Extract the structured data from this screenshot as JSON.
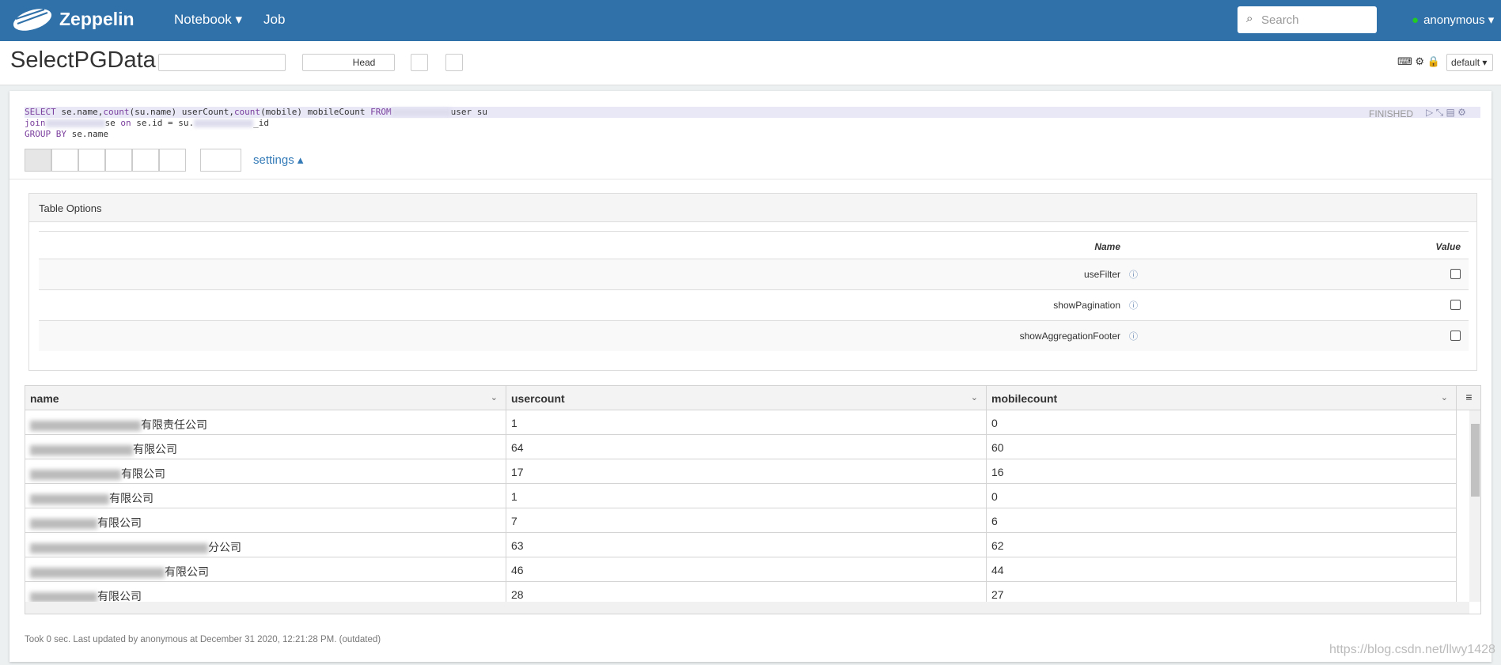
{
  "navbar": {
    "brand": "Zeppelin",
    "menu": [
      "Notebook",
      "Job"
    ],
    "search_placeholder": "Search",
    "user": "anonymous"
  },
  "notebook": {
    "title": "SelectPGData",
    "toolbar_button": "Head",
    "interpreter": "default"
  },
  "paragraph": {
    "status": "FINISHED",
    "code": [
      [
        {
          "text": "SELECT",
          "keyword": true
        },
        {
          "text": " se.name,"
        },
        {
          "text": "count",
          "keyword": true
        },
        {
          "text": "(su.name) userCount,"
        },
        {
          "text": "count",
          "keyword": true
        },
        {
          "text": "(mobile) mobileCount "
        },
        {
          "text": "FROM",
          "keyword": true
        },
        {
          "redacted": true
        },
        {
          "text": "user su"
        }
      ],
      [
        {
          "text": "join",
          "keyword": true
        },
        {
          "redacted": true
        },
        {
          "text": "se "
        },
        {
          "text": "on",
          "keyword": true
        },
        {
          "text": " se.id = su."
        },
        {
          "redacted": true
        },
        {
          "text": "_id"
        }
      ],
      [
        {
          "text": "GROUP BY",
          "keyword": true
        },
        {
          "text": " se.name"
        }
      ]
    ],
    "settings_link": "settings"
  },
  "table_options": {
    "title": "Table Options",
    "headers": [
      "Name",
      "Value"
    ],
    "options": [
      "useFilter",
      "showPagination",
      "showAggregationFooter"
    ]
  },
  "table": {
    "columns": [
      "name",
      "usercount",
      "mobilecount"
    ],
    "rows": [
      [
        "有限责任公司",
        "1",
        "0"
      ],
      [
        "有限公司",
        "64",
        "60"
      ],
      [
        "有限公司",
        "17",
        "16"
      ],
      [
        "有限公司",
        "1",
        "0"
      ],
      [
        "有限公司",
        "7",
        "6"
      ],
      [
        "分公司",
        "63",
        "62"
      ],
      [
        "有限公司",
        "46",
        "44"
      ],
      [
        "有限公司",
        "28",
        "27"
      ]
    ]
  },
  "footer": "Took 0 sec. Last updated by anonymous at December 31 2020, 12:21:28 PM. (outdated)",
  "watermark": "https://blog.csdn.net/llwy1428"
}
